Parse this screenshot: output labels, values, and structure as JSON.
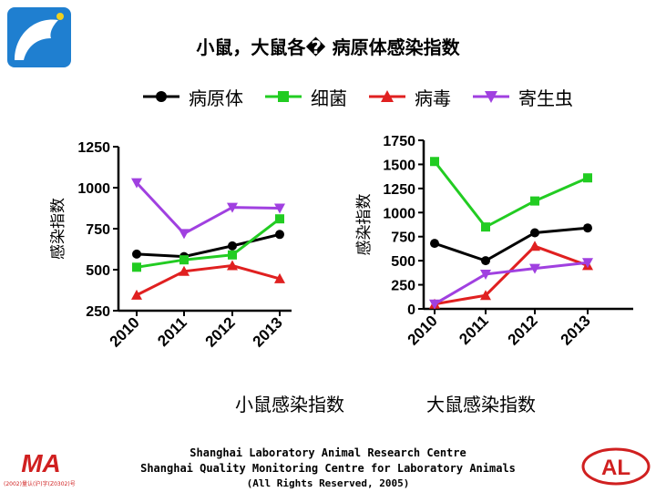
{
  "title": "小鼠，大鼠各� 病原体感染指数",
  "legend": [
    {
      "label": "病原体",
      "color": "#000000",
      "marker": "circle"
    },
    {
      "label": "细菌",
      "color": "#22cc22",
      "marker": "square"
    },
    {
      "label": "病毒",
      "color": "#e02020",
      "marker": "triangle-up"
    },
    {
      "label": "寄生虫",
      "color": "#a040e0",
      "marker": "triangle-down"
    }
  ],
  "captions": {
    "mouse": "小鼠感染指数",
    "rat": "大鼠感染指数"
  },
  "footer": {
    "line1": "Shanghai Laboratory Animal Research Centre",
    "line2": "Shanghai Quality Monitoring Centre for Laboratory Animals",
    "line3": "(All Rights Reserved, 2005)"
  },
  "logos": {
    "left_text": "MA",
    "left_sub": "(2002)量认(沪)字(Z0302)号",
    "right_text": "AL"
  },
  "chart_data": [
    {
      "type": "line",
      "ylabel": "感染指数",
      "categories": [
        "2010",
        "2011",
        "2012",
        "2013"
      ],
      "ylim": [
        250,
        1250
      ],
      "yticks": [
        "250",
        "500",
        "750",
        "1000",
        "1250"
      ],
      "series": [
        {
          "name": "病原体",
          "values": [
            595,
            580,
            645,
            715
          ]
        },
        {
          "name": "细菌",
          "values": [
            515,
            560,
            590,
            810
          ]
        },
        {
          "name": "病毒",
          "values": [
            345,
            490,
            525,
            445
          ]
        },
        {
          "name": "寄生虫",
          "values": [
            1030,
            720,
            880,
            875
          ]
        }
      ]
    },
    {
      "type": "line",
      "ylabel": "感染指数",
      "categories": [
        "2010",
        "2011",
        "2012",
        "2013"
      ],
      "ylim": [
        0,
        1750
      ],
      "yticks": [
        "0",
        "250",
        "500",
        "750",
        "1000",
        "1250",
        "1500",
        "1750"
      ],
      "series": [
        {
          "name": "病原体",
          "values": [
            680,
            500,
            790,
            840
          ]
        },
        {
          "name": "细菌",
          "values": [
            1530,
            850,
            1120,
            1360
          ]
        },
        {
          "name": "病毒",
          "values": [
            50,
            140,
            650,
            450
          ]
        },
        {
          "name": "寄生虫",
          "values": [
            50,
            360,
            420,
            480
          ]
        }
      ]
    }
  ]
}
